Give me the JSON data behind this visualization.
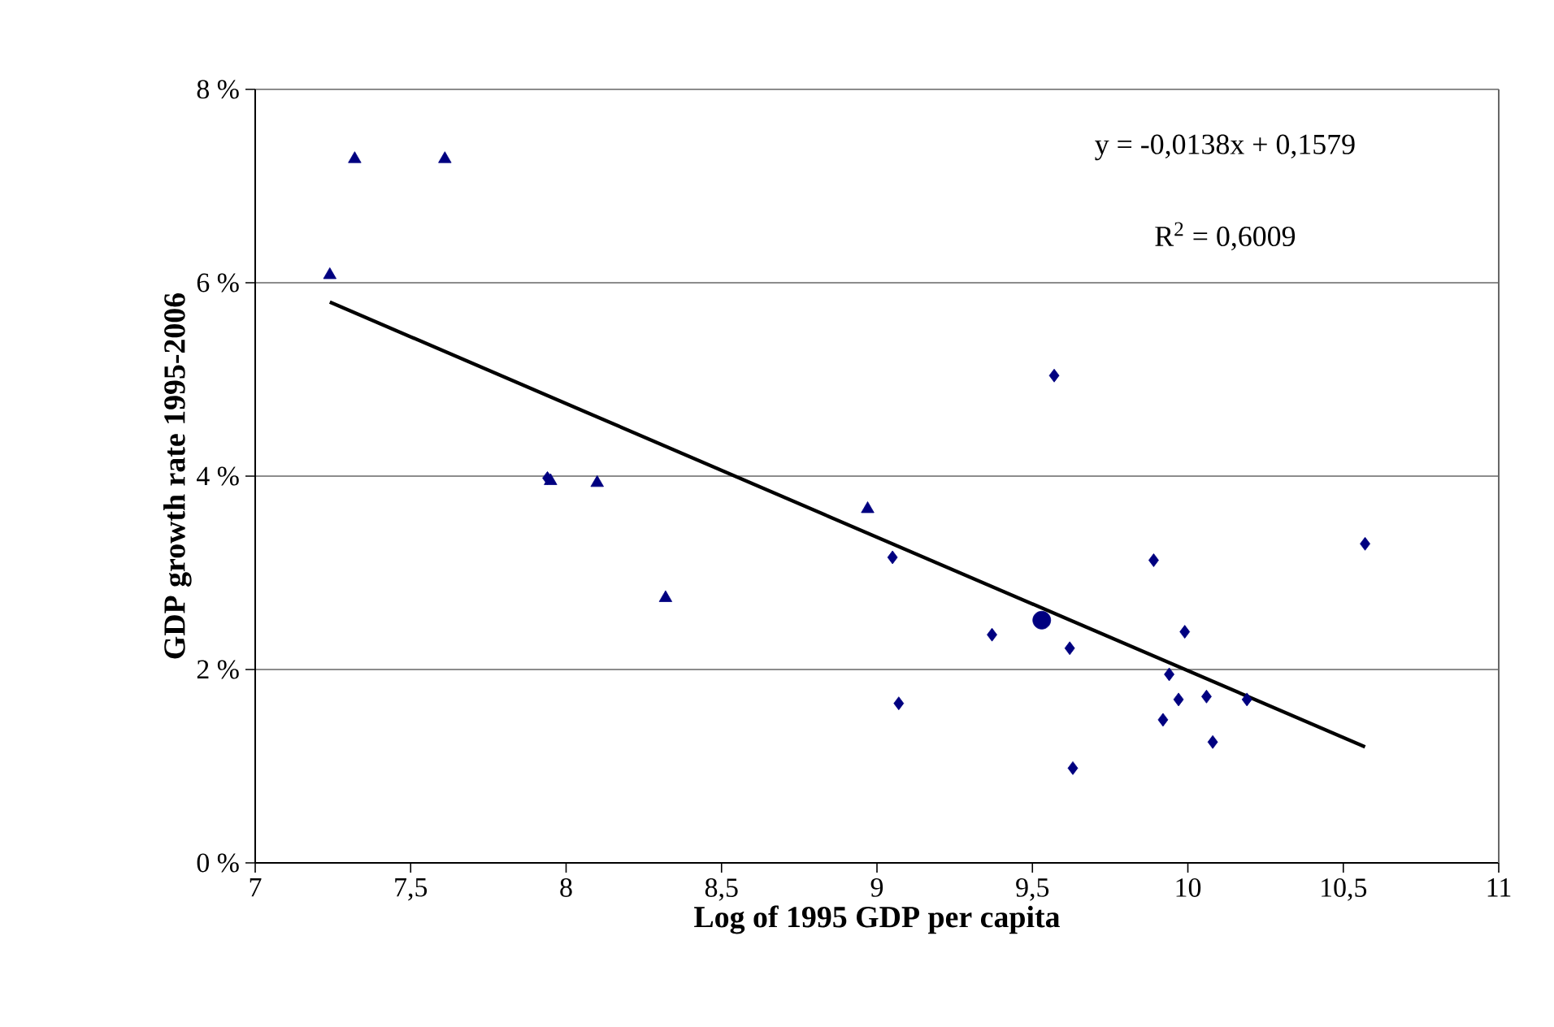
{
  "chart_data": {
    "type": "scatter",
    "xlabel": "Log of 1995 GDP per capita",
    "ylabel": "GDP growth rate 1995-2006",
    "xlim": [
      7,
      11
    ],
    "ylim": [
      0,
      8
    ],
    "xticks": [
      7,
      {
        "value": 7.5,
        "label": "7,5"
      },
      8,
      {
        "value": 8.5,
        "label": "8,5"
      },
      9,
      {
        "value": 9.5,
        "label": "9,5"
      },
      10,
      {
        "value": 10.5,
        "label": "10,5"
      },
      11
    ],
    "yticks": [
      {
        "value": 0,
        "label": "0 %"
      },
      {
        "value": 2,
        "label": "2 %"
      },
      {
        "value": 4,
        "label": "4 %"
      },
      {
        "value": 6,
        "label": "6 %"
      },
      {
        "value": 8,
        "label": "8 %"
      }
    ],
    "grid": "y",
    "annotations": [
      "y = -0,0138x + 0,1579",
      "R$^{2}$ = 0,6009"
    ],
    "series": [
      {
        "marker": "triangle",
        "color": "#000080",
        "x": [
          7.32,
          7.61,
          7.24,
          7.95,
          8.1,
          8.32,
          8.97
        ],
        "values": [
          7.28,
          7.28,
          6.08,
          3.95,
          3.93,
          2.74,
          3.66
        ]
      },
      {
        "marker": "diamond",
        "color": "#000080",
        "x": [
          7.94,
          9.57,
          9.05,
          9.89,
          10.57,
          9.37,
          9.62,
          9.99,
          9.94,
          9.07,
          9.97,
          10.06,
          10.19,
          9.92,
          10.08,
          9.63
        ],
        "values": [
          3.98,
          5.04,
          3.16,
          3.13,
          3.3,
          2.36,
          2.22,
          2.39,
          1.95,
          1.65,
          1.69,
          1.72,
          1.69,
          1.48,
          1.25,
          0.98
        ]
      },
      {
        "marker": "circle",
        "color": "#000080",
        "x": [
          9.53
        ],
        "values": [
          2.51
        ]
      },
      {
        "type": "line",
        "marker": "none",
        "color": "#000000",
        "x": [
          7.24,
          10.57
        ],
        "values": [
          5.8,
          1.2
        ]
      }
    ]
  }
}
